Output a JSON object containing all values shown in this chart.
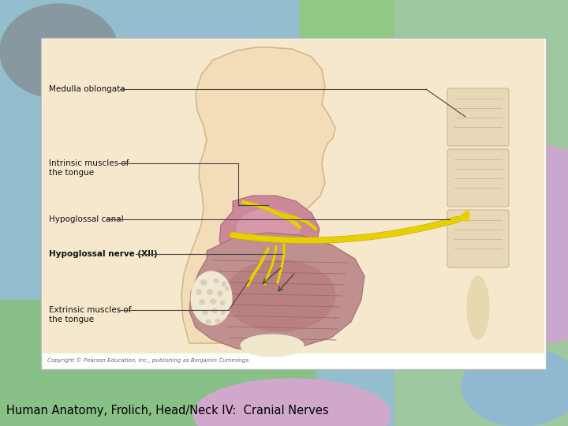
{
  "title_text": "Human Anatomy, Frolich, Head/Neck IV:  Cranial Nerves",
  "title_color": "#000000",
  "title_fontsize": 10.5,
  "label_medulla": "Medulla oblongata",
  "label_intrinsic": "Intrinsic muscles of\nthe tongue",
  "label_canal": "Hypoglossal canal",
  "label_nerve": "Hypoglossal nerve (XII)",
  "label_extrinsic": "Extrinsic muscles of\nthe tongue",
  "copyright_text": "Copyright © Pearson Education, Inc., publishing as Benjamin Cummings.",
  "bg_left_color": "#88b8cc",
  "bg_right_top_color": "#90cc88",
  "bg_right_color": "#c0d8b0",
  "gray_blob_color": "#8898a0",
  "pink_blob_color": "#c8a8cc",
  "pink_circle_color": "#d0a8cc",
  "blue_zone_color": "#a0c0d8",
  "panel_bg": "#ffffff",
  "image_bg": "#f5e8cc",
  "nerve_color": "#e8d000",
  "nerve_outline": "#c8b000",
  "head_fill": "#f2ddb8",
  "head_stroke": "#d4b888",
  "tongue_color": "#d4909a",
  "tongue_dark": "#b87080",
  "muscle_color": "#c89898",
  "muscle_dark": "#a87878",
  "bone_color": "#f0e8d0",
  "bone_stroke": "#d0c0a0",
  "vertebra_fill": "#e8d8b8",
  "vertebra_stroke": "#c8b898",
  "label_color": "#111111",
  "line_color": "#444444",
  "label_fontsize": 7.5,
  "bold_label_fontsize": 7.5
}
